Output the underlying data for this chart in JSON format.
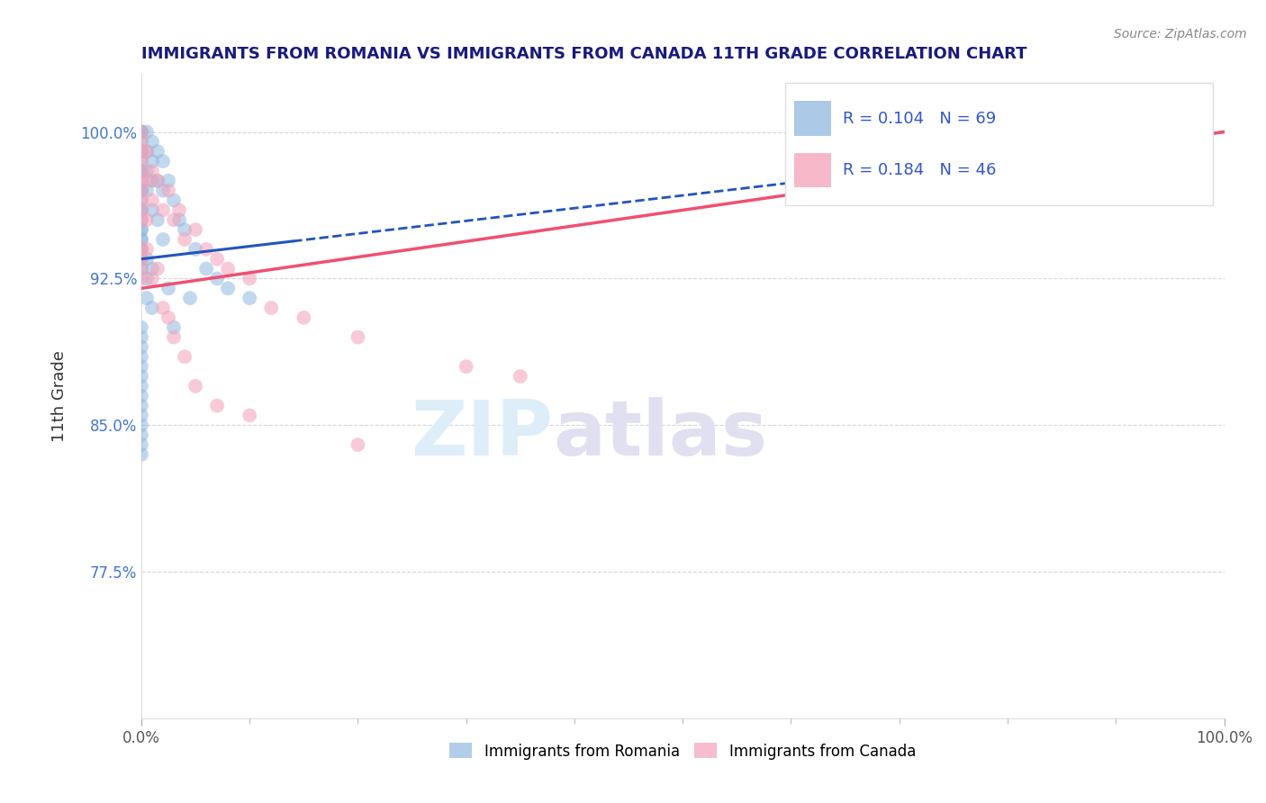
{
  "title": "IMMIGRANTS FROM ROMANIA VS IMMIGRANTS FROM CANADA 11TH GRADE CORRELATION CHART",
  "source": "Source: ZipAtlas.com",
  "ylabel": "11th Grade",
  "xlim": [
    0,
    100
  ],
  "ylim": [
    70,
    103
  ],
  "yticks": [
    77.5,
    85.0,
    92.5,
    100.0
  ],
  "xtick_labels": [
    "0.0%",
    "100.0%"
  ],
  "ytick_labels": [
    "77.5%",
    "85.0%",
    "92.5%",
    "100.0%"
  ],
  "background_color": "#ffffff",
  "grid_color": "#cccccc",
  "title_color": "#1a1a7c",
  "source_color": "#888888",
  "romania_color": "#90b8e0",
  "canada_color": "#f4a0b8",
  "romania_line_color": "#2255bb",
  "canada_line_color": "#f05070",
  "legend_R1": "R = 0.104",
  "legend_N1": "N = 69",
  "legend_R2": "R = 0.184",
  "legend_N2": "N = 46",
  "legend_label1": "Immigrants from Romania",
  "legend_label2": "Immigrants from Canada",
  "romania_x": [
    0.0,
    0.0,
    0.0,
    0.0,
    0.0,
    0.0,
    0.0,
    0.0,
    0.0,
    0.0,
    0.0,
    0.0,
    0.0,
    0.0,
    0.0,
    0.0,
    0.0,
    0.0,
    0.0,
    0.0,
    0.5,
    0.5,
    0.5,
    0.5,
    1.0,
    1.0,
    1.0,
    1.5,
    1.5,
    2.0,
    2.0,
    2.5,
    3.0,
    3.5,
    4.0,
    5.0,
    6.0,
    7.0,
    8.0,
    10.0,
    1.0,
    1.5,
    2.0,
    0.5,
    0.5,
    1.0,
    0.5,
    1.0,
    0.0,
    0.0,
    0.0,
    0.0,
    0.0,
    0.0,
    0.0,
    0.0,
    0.0,
    0.0,
    3.0,
    4.5,
    0.0,
    0.0,
    0.0,
    0.0,
    2.5,
    0.0,
    0.0,
    0.0,
    0.0
  ],
  "romania_y": [
    100.0,
    100.0,
    100.0,
    99.5,
    99.0,
    99.0,
    98.5,
    98.0,
    98.0,
    97.5,
    97.0,
    97.0,
    96.5,
    96.0,
    96.0,
    95.5,
    95.0,
    95.0,
    94.5,
    94.0,
    100.0,
    99.0,
    98.0,
    97.0,
    99.5,
    98.5,
    97.5,
    99.0,
    97.5,
    98.5,
    97.0,
    97.5,
    96.5,
    95.5,
    95.0,
    94.0,
    93.0,
    92.5,
    92.0,
    91.5,
    96.0,
    95.5,
    94.5,
    93.5,
    92.5,
    93.0,
    91.5,
    91.0,
    90.0,
    89.5,
    89.0,
    88.5,
    88.0,
    87.5,
    87.0,
    86.5,
    86.0,
    85.5,
    90.0,
    91.5,
    93.0,
    93.5,
    94.0,
    94.5,
    92.0,
    85.0,
    84.5,
    84.0,
    83.5
  ],
  "canada_x": [
    0.0,
    0.0,
    0.0,
    0.0,
    0.0,
    0.0,
    0.0,
    0.0,
    0.0,
    0.0,
    0.5,
    0.5,
    1.0,
    1.0,
    1.5,
    2.0,
    2.5,
    3.0,
    3.5,
    4.0,
    5.0,
    6.0,
    7.0,
    8.0,
    10.0,
    12.0,
    15.0,
    20.0,
    30.0,
    35.0,
    0.0,
    0.0,
    0.0,
    0.0,
    0.5,
    0.5,
    1.0,
    1.5,
    2.0,
    2.5,
    3.0,
    4.0,
    5.0,
    7.0,
    10.0,
    20.0
  ],
  "canada_y": [
    100.0,
    99.5,
    99.0,
    98.5,
    98.0,
    97.5,
    97.0,
    96.5,
    96.0,
    95.5,
    99.0,
    97.5,
    98.0,
    96.5,
    97.5,
    96.0,
    97.0,
    95.5,
    96.0,
    94.5,
    95.0,
    94.0,
    93.5,
    93.0,
    92.5,
    91.0,
    90.5,
    89.5,
    88.0,
    87.5,
    94.0,
    93.5,
    93.0,
    92.5,
    95.5,
    94.0,
    92.5,
    93.0,
    91.0,
    90.5,
    89.5,
    88.5,
    87.0,
    86.0,
    85.5,
    84.0
  ],
  "ro_line_x0": 0.0,
  "ro_line_y0": 93.5,
  "ro_line_x1": 100.0,
  "ro_line_y1": 100.0,
  "ro_solid_x1": 14.0,
  "ca_line_x0": 0.0,
  "ca_line_y0": 92.0,
  "ca_line_x1": 100.0,
  "ca_line_y1": 100.0
}
